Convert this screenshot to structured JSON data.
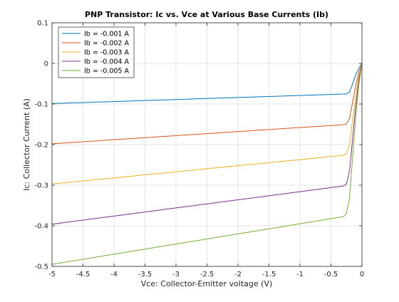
{
  "chart_data": {
    "type": "line",
    "title": "PNP Transistor: Ic vs. Vce at Various Base Currents (Ib)",
    "xlabel": "Vce: Collector-Emitter voltage (V)",
    "ylabel": "Ic: Collector Current (A)",
    "xlim": [
      -5,
      0
    ],
    "ylim": [
      -0.5,
      0.1
    ],
    "xticks": [
      -5,
      -4.5,
      -4,
      -3.5,
      -3,
      -2.5,
      -2,
      -1.5,
      -1,
      -0.5,
      0
    ],
    "xtick_labels": [
      "-5",
      "-4.5",
      "-4",
      "-3.5",
      "-3",
      "-2.5",
      "-2",
      "-1.5",
      "-1",
      "-0.5",
      "0"
    ],
    "yticks": [
      -0.5,
      -0.4,
      -0.3,
      -0.2,
      -0.1,
      0,
      0.1
    ],
    "ytick_labels": [
      "-0.5",
      "-0.4",
      "-0.3",
      "-0.2",
      "-0.1",
      "0",
      "0.1"
    ],
    "grid": true,
    "legend_position": "top-left",
    "x": [
      -5,
      -4.5,
      -4,
      -3.5,
      -3,
      -2.5,
      -2,
      -1.5,
      -1,
      -0.5,
      -0.3,
      -0.25,
      -0.2,
      -0.15,
      -0.1,
      -0.05,
      0
    ],
    "series": [
      {
        "name": "Ib = -0.001 A",
        "color": "#0072BD",
        "values": [
          -0.099,
          -0.0965,
          -0.094,
          -0.0915,
          -0.089,
          -0.0865,
          -0.084,
          -0.0815,
          -0.079,
          -0.0765,
          -0.0755,
          -0.075,
          -0.07,
          -0.05,
          -0.028,
          -0.012,
          0
        ]
      },
      {
        "name": "Ib = -0.002 A",
        "color": "#D95319",
        "values": [
          -0.198,
          -0.193,
          -0.188,
          -0.183,
          -0.178,
          -0.173,
          -0.168,
          -0.163,
          -0.158,
          -0.153,
          -0.151,
          -0.149,
          -0.135,
          -0.095,
          -0.055,
          -0.022,
          0
        ]
      },
      {
        "name": "Ib = -0.003 A",
        "color": "#EDB120",
        "values": [
          -0.297,
          -0.2895,
          -0.282,
          -0.2745,
          -0.267,
          -0.2595,
          -0.252,
          -0.2445,
          -0.237,
          -0.2295,
          -0.2265,
          -0.223,
          -0.2,
          -0.14,
          -0.08,
          -0.032,
          0
        ]
      },
      {
        "name": "Ib = -0.004 A",
        "color": "#7E2F8E",
        "values": [
          -0.396,
          -0.386,
          -0.376,
          -0.366,
          -0.356,
          -0.346,
          -0.336,
          -0.326,
          -0.316,
          -0.306,
          -0.302,
          -0.297,
          -0.265,
          -0.185,
          -0.105,
          -0.042,
          0
        ]
      },
      {
        "name": "Ib = -0.005 A",
        "color": "#77AC30",
        "values": [
          -0.495,
          -0.4825,
          -0.47,
          -0.4575,
          -0.445,
          -0.4325,
          -0.42,
          -0.4075,
          -0.395,
          -0.3825,
          -0.3775,
          -0.37,
          -0.33,
          -0.23,
          -0.13,
          -0.052,
          0
        ]
      }
    ]
  }
}
